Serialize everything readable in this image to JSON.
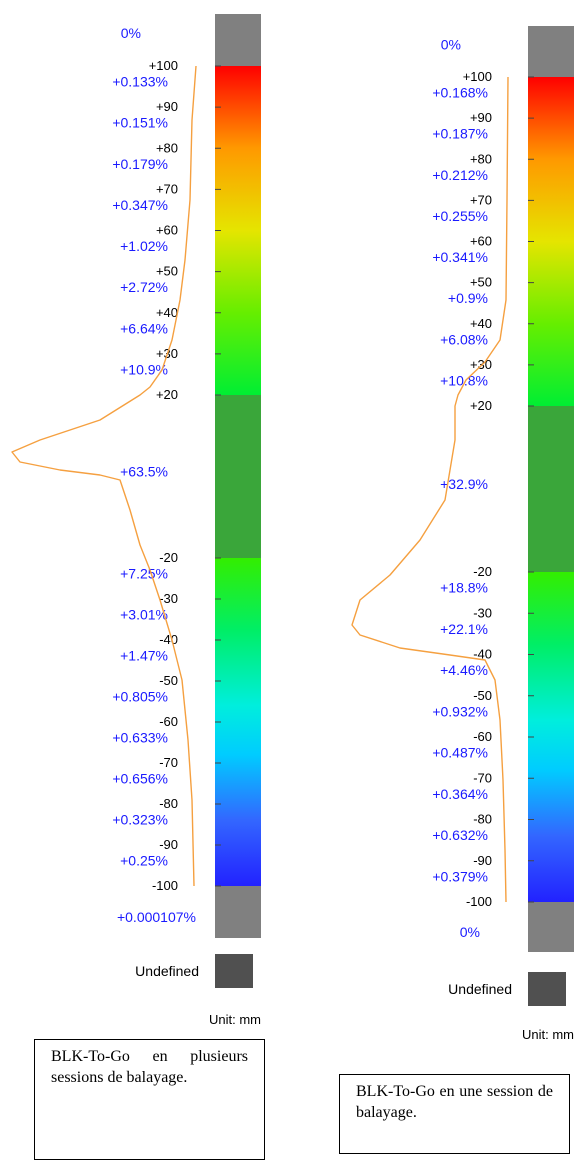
{
  "chart_data": [
    {
      "type": "histogram-colorbar",
      "unit_label": "Unit: mm",
      "undefined_label": "Undefined",
      "top_label": "0%",
      "bottom_label": "+0.000107%",
      "scale_ticks": [
        "+100",
        "+90",
        "+80",
        "+70",
        "+60",
        "+50",
        "+40",
        "+30",
        "+20",
        "-20",
        "-30",
        "-40",
        "-50",
        "-60",
        "-70",
        "-80",
        "-90",
        "-100"
      ],
      "bins": [
        {
          "range": [
            90,
            100
          ],
          "percent": "+0.133%"
        },
        {
          "range": [
            80,
            90
          ],
          "percent": "+0.151%"
        },
        {
          "range": [
            70,
            80
          ],
          "percent": "+0.179%"
        },
        {
          "range": [
            60,
            70
          ],
          "percent": "+0.347%"
        },
        {
          "range": [
            50,
            60
          ],
          "percent": "+1.02%"
        },
        {
          "range": [
            40,
            50
          ],
          "percent": "+2.72%"
        },
        {
          "range": [
            30,
            40
          ],
          "percent": "+6.64%"
        },
        {
          "range": [
            20,
            30
          ],
          "percent": "+10.9%"
        },
        {
          "range": [
            -20,
            20
          ],
          "percent": "+63.5%"
        },
        {
          "range": [
            -30,
            -20
          ],
          "percent": "+7.25%"
        },
        {
          "range": [
            -40,
            -30
          ],
          "percent": "+3.01%"
        },
        {
          "range": [
            -50,
            -40
          ],
          "percent": "+1.47%"
        },
        {
          "range": [
            -60,
            -50
          ],
          "percent": "+0.805%"
        },
        {
          "range": [
            -70,
            -60
          ],
          "percent": "+0.633%"
        },
        {
          "range": [
            -80,
            -70
          ],
          "percent": "+0.656%"
        },
        {
          "range": [
            -90,
            -80
          ],
          "percent": "+0.323%"
        },
        {
          "range": [
            -100,
            -90
          ],
          "percent": "+0.25%"
        }
      ],
      "caption": "BLK-To-Go en plusieurs sessions de balayage."
    },
    {
      "type": "histogram-colorbar",
      "unit_label": "Unit: mm",
      "undefined_label": "Undefined",
      "top_label": "0%",
      "bottom_label": "0%",
      "scale_ticks": [
        "+100",
        "+90",
        "+80",
        "+70",
        "+60",
        "+50",
        "+40",
        "+30",
        "+20",
        "-20",
        "-30",
        "-40",
        "-50",
        "-60",
        "-70",
        "-80",
        "-90",
        "-100"
      ],
      "bins": [
        {
          "range": [
            90,
            100
          ],
          "percent": "+0.168%"
        },
        {
          "range": [
            80,
            90
          ],
          "percent": "+0.187%"
        },
        {
          "range": [
            70,
            80
          ],
          "percent": "+0.212%"
        },
        {
          "range": [
            60,
            70
          ],
          "percent": "+0.255%"
        },
        {
          "range": [
            50,
            60
          ],
          "percent": "+0.341%"
        },
        {
          "range": [
            40,
            50
          ],
          "percent": "+0.9%"
        },
        {
          "range": [
            30,
            40
          ],
          "percent": "+6.08%"
        },
        {
          "range": [
            20,
            30
          ],
          "percent": "+10.8%"
        },
        {
          "range": [
            -20,
            20
          ],
          "percent": "+32.9%"
        },
        {
          "range": [
            -30,
            -20
          ],
          "percent": "+18.8%"
        },
        {
          "range": [
            -40,
            -30
          ],
          "percent": "+22.1%"
        },
        {
          "range": [
            -50,
            -40
          ],
          "percent": "+4.46%"
        },
        {
          "range": [
            -60,
            -50
          ],
          "percent": "+0.932%"
        },
        {
          "range": [
            -70,
            -60
          ],
          "percent": "+0.487%"
        },
        {
          "range": [
            -80,
            -70
          ],
          "percent": "+0.364%"
        },
        {
          "range": [
            -90,
            -80
          ],
          "percent": "+0.632%"
        },
        {
          "range": [
            -100,
            -90
          ],
          "percent": "+0.379%"
        }
      ],
      "caption": "BLK-To-Go en une session de balayage."
    }
  ],
  "colors": {
    "gray_band": "#808080",
    "undefined_swatch": "#505050",
    "center_band": "#3aa63a",
    "percent_text": "#1a1aff",
    "curve": "#f5a040"
  }
}
